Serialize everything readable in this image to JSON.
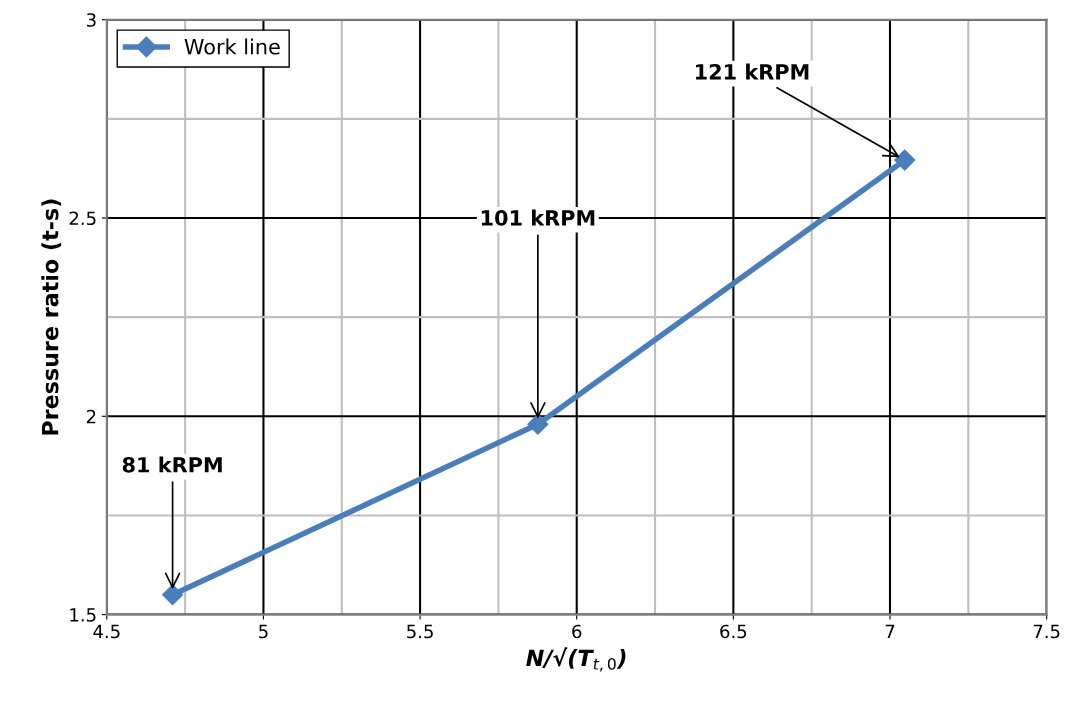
{
  "chart_data": {
    "type": "line",
    "xlabel": "N/√(T$_{t,0}$)",
    "ylabel": "Pressure ratio (t-s)",
    "x": [
      4.71,
      5.876,
      7.047
    ],
    "series": [
      {
        "name": "Work line",
        "color": "#4a7ebb",
        "values": [
          1.55,
          1.98,
          2.646
        ]
      }
    ],
    "xlim": [
      4.5,
      7.5
    ],
    "xticks": [
      4.5,
      5,
      5.5,
      6,
      6.5,
      7,
      7.5
    ],
    "ylim": [
      1.5,
      3
    ],
    "yticks": [
      1.5,
      2,
      2.5,
      3
    ],
    "annotations": [
      {
        "text": "81 kRPM",
        "x": 4.71,
        "y": 1.55
      },
      {
        "text": "101 kRPM",
        "x": 5.876,
        "y": 1.98
      },
      {
        "text": "121 kRPM",
        "x": 7.047,
        "y": 2.646
      }
    ],
    "grid": true,
    "legend": "top left",
    "marker": "diamond",
    "line_style": "solid"
  }
}
